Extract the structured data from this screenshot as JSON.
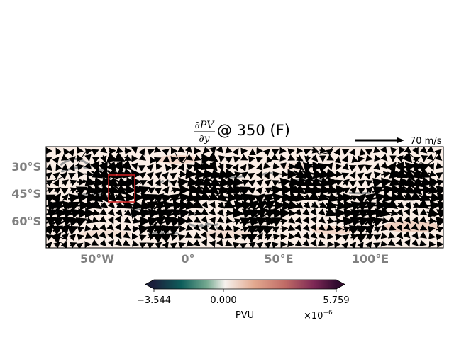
{
  "title": {
    "numerator": "∂PV",
    "denominator": "∂y",
    "rest": " @ 350 (F)"
  },
  "reference_vector": {
    "label": "70 m/s"
  },
  "map": {
    "lat_labels": [
      "30°S",
      "45°S",
      "60°S"
    ],
    "lon_labels": [
      "50°W",
      "0°",
      "50°E",
      "100°E"
    ],
    "colors": {
      "background": "#fbeee6",
      "arrow": "#000000",
      "contour": "#999999",
      "box": "#cc2222"
    },
    "highlight_box": {
      "lon": [
        -40,
        -25
      ],
      "lat": [
        -38,
        -53
      ]
    }
  },
  "colorbar": {
    "ticks": [
      "−3.544",
      "0.000",
      "5.759"
    ],
    "label": "PVU",
    "exponent": "×10",
    "exponent_power": "−6",
    "colors": [
      "#1b1f3b",
      "#0e5e5b",
      "#74a990",
      "#f6f1ed",
      "#e3a98f",
      "#c06b66",
      "#7c2755",
      "#310b2f"
    ]
  }
}
